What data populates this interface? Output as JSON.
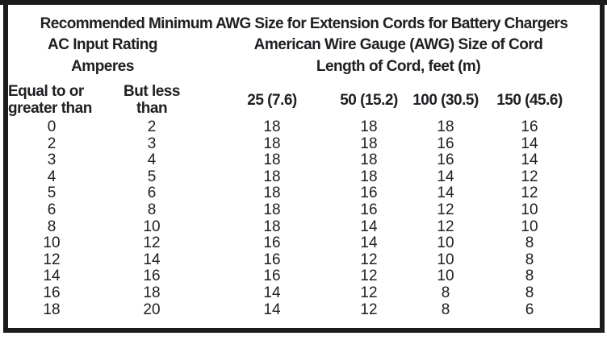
{
  "table": {
    "title": "Recommended Minimum AWG Size for Extension Cords for Battery Chargers",
    "left_group": {
      "line1": "AC Input Rating",
      "line2": "Amperes"
    },
    "right_group": {
      "line1": "American Wire Gauge (AWG) Size of Cord",
      "line2": "Length of Cord, feet (m)"
    },
    "columns": [
      {
        "label_line1": "Equal to or",
        "label_line2": "greater than"
      },
      {
        "label_line1": "But less",
        "label_line2": "than"
      },
      {
        "label": "25 (7.6)"
      },
      {
        "label": "50 (15.2)"
      },
      {
        "label": "100 (30.5)"
      },
      {
        "label": "150 (45.6)"
      }
    ],
    "rows": [
      [
        0,
        2,
        18,
        18,
        18,
        16
      ],
      [
        2,
        3,
        18,
        18,
        16,
        14
      ],
      [
        3,
        4,
        18,
        18,
        16,
        14
      ],
      [
        4,
        5,
        18,
        18,
        14,
        12
      ],
      [
        5,
        6,
        18,
        16,
        14,
        12
      ],
      [
        6,
        8,
        18,
        16,
        12,
        10
      ],
      [
        8,
        10,
        18,
        14,
        12,
        10
      ],
      [
        10,
        12,
        16,
        14,
        10,
        8
      ],
      [
        12,
        14,
        16,
        12,
        10,
        8
      ],
      [
        14,
        16,
        16,
        12,
        10,
        8
      ],
      [
        16,
        18,
        14,
        12,
        8,
        8
      ],
      [
        18,
        20,
        14,
        12,
        8,
        6
      ]
    ]
  },
  "colors": {
    "border": "#1b1b1e",
    "text": "#202024",
    "background": "#ffffff"
  }
}
